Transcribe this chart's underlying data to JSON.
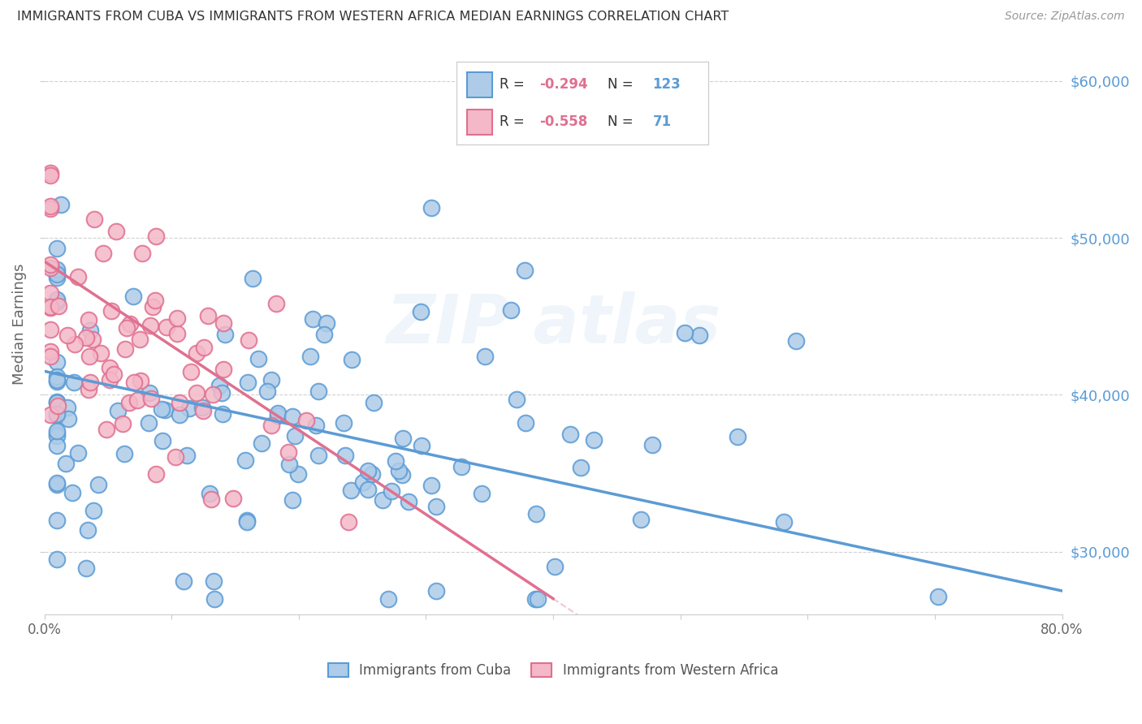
{
  "title": "IMMIGRANTS FROM CUBA VS IMMIGRANTS FROM WESTERN AFRICA MEDIAN EARNINGS CORRELATION CHART",
  "source": "Source: ZipAtlas.com",
  "ylabel": "Median Earnings",
  "blue_color": "#5b9bd5",
  "blue_face": "#aecce8",
  "pink_color": "#e07090",
  "pink_face": "#f4b8c8",
  "background_color": "#ffffff",
  "grid_color": "#cccccc",
  "title_color": "#333333",
  "source_color": "#999999",
  "right_label_color": "#5b9bd5",
  "legend_text_color": "#333333",
  "R_color": "#e07090",
  "N_color": "#5b9bd5",
  "xlim": [
    0,
    80
  ],
  "ylim": [
    26000,
    63000
  ],
  "yticks": [
    30000,
    40000,
    50000,
    60000
  ],
  "ytick_labels": [
    "$30,000",
    "$40,000",
    "$50,000",
    "$60,000"
  ],
  "xticks": [
    0,
    10,
    20,
    30,
    40,
    50,
    60,
    70,
    80
  ],
  "cuba_R": -0.294,
  "cuba_N": 123,
  "wa_R": -0.558,
  "wa_N": 71,
  "cuba_line_x0": 0,
  "cuba_line_y0": 41500,
  "cuba_line_x1": 80,
  "cuba_line_y1": 27500,
  "wa_line_x0": 0,
  "wa_line_y0": 48500,
  "wa_line_x1": 40,
  "wa_line_y1": 27000,
  "wa_dash_x0": 40,
  "wa_dash_x1": 57
}
